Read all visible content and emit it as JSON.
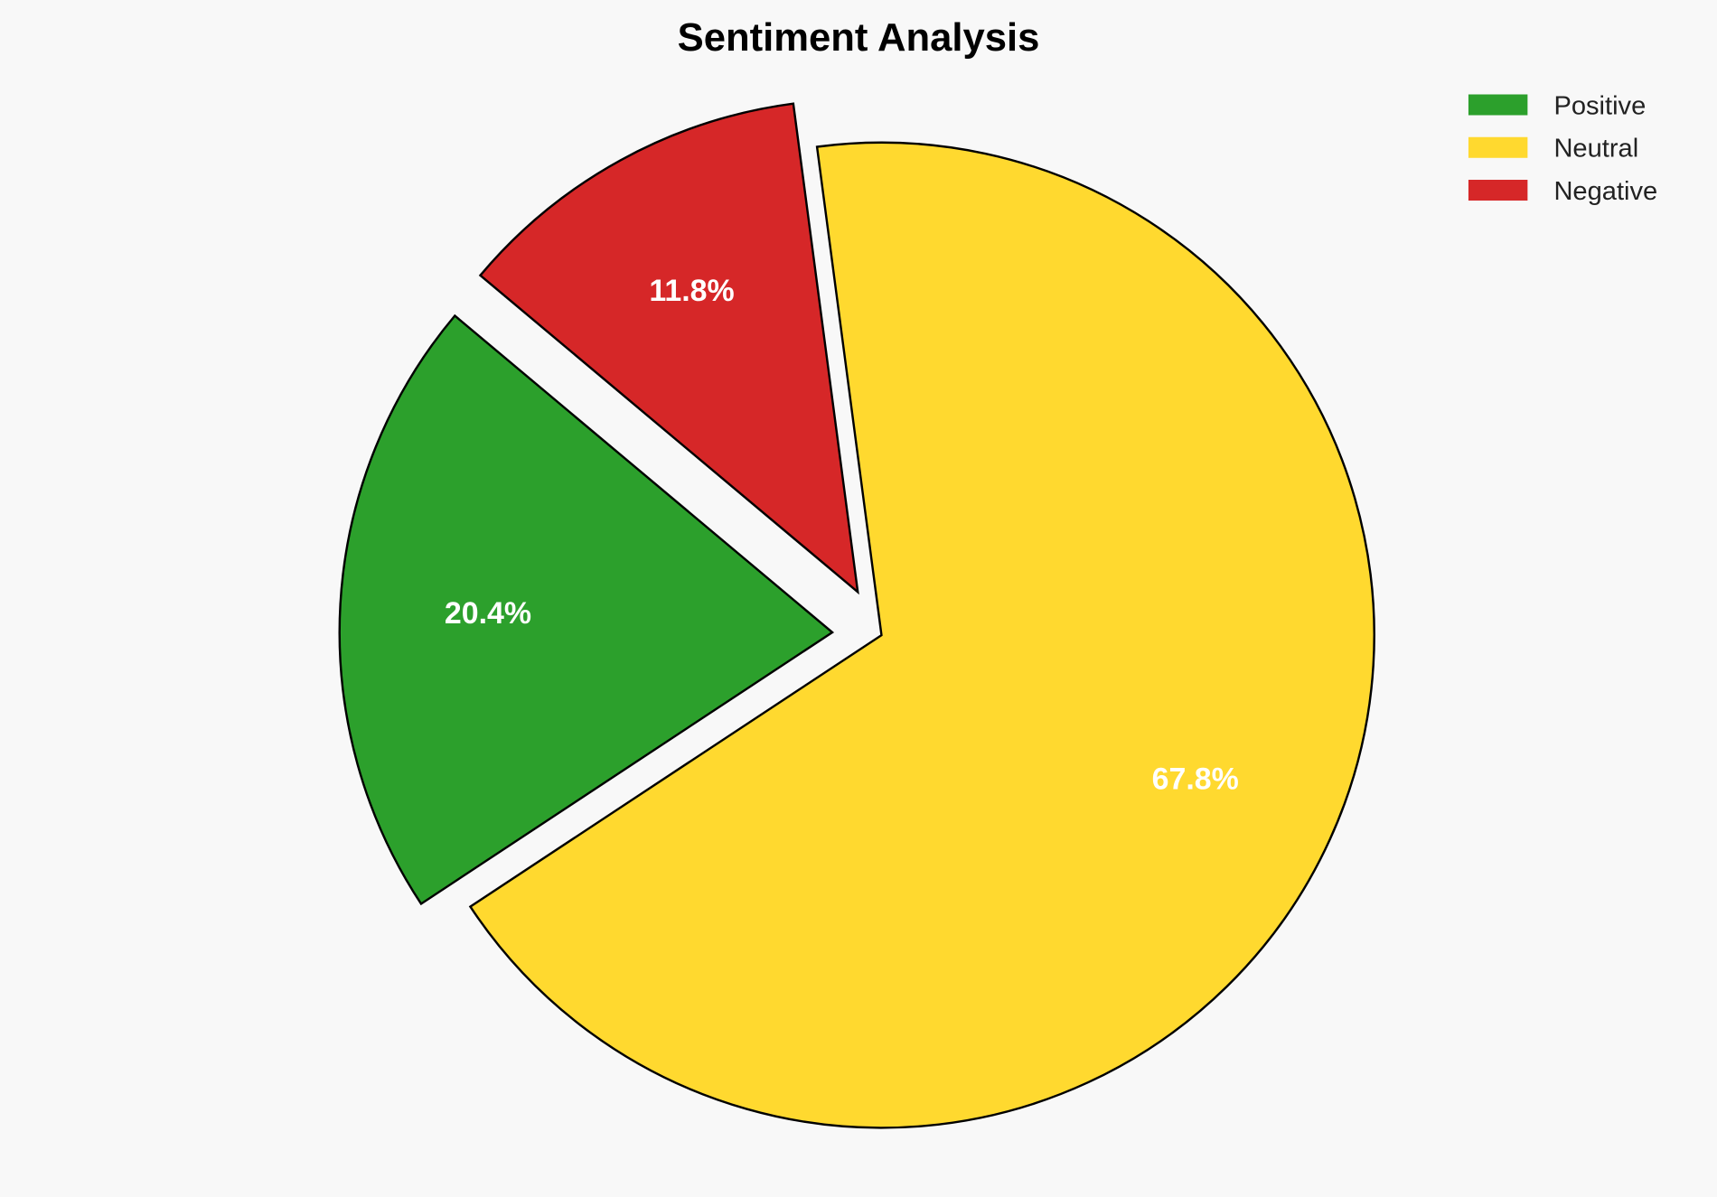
{
  "chart_data": {
    "type": "pie",
    "title": "Sentiment Analysis",
    "categories": [
      "Positive",
      "Neutral",
      "Negative"
    ],
    "values": [
      20.4,
      67.8,
      11.8
    ],
    "labels": [
      "20.4%",
      "67.8%",
      "11.8%"
    ],
    "colors": [
      "#2ca02c",
      "#ffd92f",
      "#d62728"
    ],
    "explode": [
      0.1,
      0,
      0.1
    ],
    "start_angle": 140,
    "direction": "counterclockwise",
    "legend_placement": "top-right",
    "background": "#f8f8f8",
    "edge_color": "#000000"
  }
}
